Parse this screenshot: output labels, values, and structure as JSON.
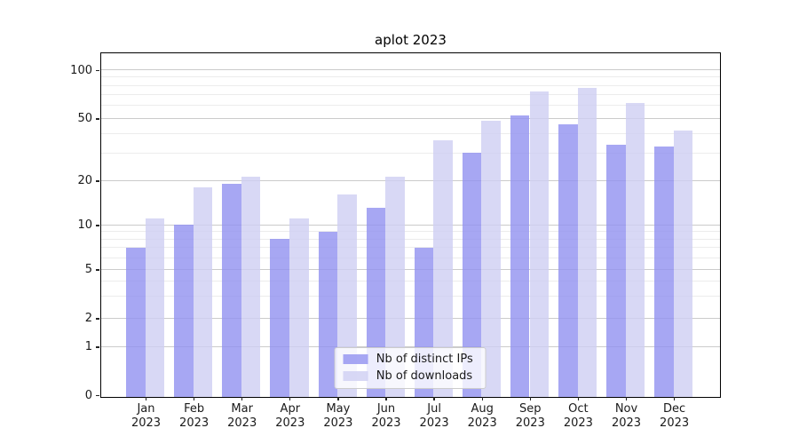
{
  "chart_data": {
    "type": "bar",
    "title": "aplot 2023",
    "categories": [
      "Jan",
      "Feb",
      "Mar",
      "Apr",
      "May",
      "Jun",
      "Jul",
      "Aug",
      "Sep",
      "Oct",
      "Nov",
      "Dec"
    ],
    "x_year_line": "2023",
    "series": [
      {
        "name": "Nb of distinct IPs",
        "color": "rgba(145,145,240,0.8)",
        "values": [
          7,
          10,
          19,
          8,
          9,
          13,
          7,
          30,
          52,
          46,
          34,
          33
        ]
      },
      {
        "name": "Nb of downloads",
        "color": "rgba(206,206,243,0.8)",
        "values": [
          11,
          18,
          21,
          11,
          16,
          21,
          36,
          48,
          73,
          77,
          62,
          42
        ]
      }
    ],
    "xlabel": "",
    "ylabel": "",
    "yscale": "symlog",
    "ylim": [
      0,
      128
    ],
    "yticks": [
      0,
      1,
      2,
      5,
      10,
      20,
      50,
      100
    ],
    "ytick_labels": [
      "0",
      "1",
      "2",
      "5",
      "10",
      "20",
      "50",
      "100"
    ],
    "minor_yticks": [
      3,
      4,
      6,
      7,
      8,
      9,
      30,
      40,
      60,
      70,
      80,
      90
    ],
    "grid": "on",
    "legend_position": "lower center"
  },
  "colors": {
    "grid_major": "#cbcbcb",
    "grid_minor": "#ececec",
    "spine": "#000000",
    "text": "#1a1a1a",
    "background": "#ffffff"
  }
}
